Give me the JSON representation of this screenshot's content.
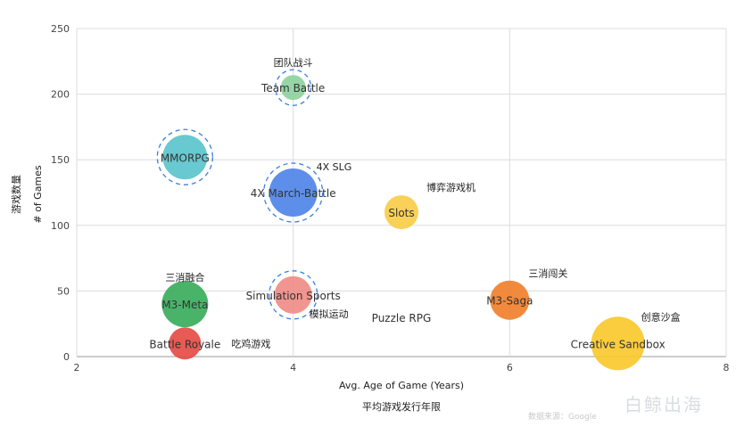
{
  "chart_data": {
    "type": "scatter",
    "title": "",
    "xlabel_en": "Avg. Age of Game (Years)",
    "xlabel_cn": "平均游戏发行年限",
    "ylabel_en": "# of Games",
    "ylabel_cn": "游戏数量",
    "xlim": [
      2,
      8
    ],
    "ylim": [
      0,
      250
    ],
    "x_ticks": [
      2,
      4,
      6,
      8
    ],
    "y_ticks": [
      0,
      50,
      100,
      150,
      200,
      250
    ],
    "grid": true,
    "points": [
      {
        "label": "Team Battle",
        "label_cn": "团队战斗",
        "x": 4,
        "y": 205,
        "size": 14,
        "color": "#8fd19e",
        "ring": true
      },
      {
        "label": "MMORPG",
        "label_cn": "",
        "x": 3,
        "y": 152,
        "size": 25,
        "color": "#5bc4cc",
        "ring": true
      },
      {
        "label": "4X March-Battle",
        "label_cn": "4X SLG",
        "x": 4,
        "y": 125,
        "size": 27,
        "color": "#4f86e8",
        "ring": true
      },
      {
        "label": "Slots",
        "label_cn": "博弈游戏机",
        "x": 5,
        "y": 110,
        "size": 19,
        "color": "#f8cd4a",
        "ring": false
      },
      {
        "label": "M3-Meta",
        "label_cn": "三消融合",
        "x": 3,
        "y": 40,
        "size": 26,
        "color": "#3aae5c",
        "ring": false
      },
      {
        "label": "Simulation Sports",
        "label_cn": "模拟运动",
        "x": 4,
        "y": 47,
        "size": 21,
        "color": "#ef8c86",
        "ring": true
      },
      {
        "label": "Puzzle RPG",
        "label_cn": "",
        "x": 5,
        "y": 30,
        "size": 0,
        "color": "#cccccc",
        "ring": false
      },
      {
        "label": "M3-Saga",
        "label_cn": "三消闯关",
        "x": 6,
        "y": 43,
        "size": 22,
        "color": "#f0802c",
        "ring": false
      },
      {
        "label": "Battle Royale",
        "label_cn": "吃鸡游戏",
        "x": 3,
        "y": 10,
        "size": 18,
        "color": "#e64c45",
        "ring": false
      },
      {
        "label": "Creative Sandbox",
        "label_cn": "创意沙盒",
        "x": 7,
        "y": 10,
        "size": 30,
        "color": "#f9c92e",
        "ring": false
      }
    ]
  },
  "footer": {
    "source": "数据来源：Google",
    "watermark": "白鲸出海"
  }
}
